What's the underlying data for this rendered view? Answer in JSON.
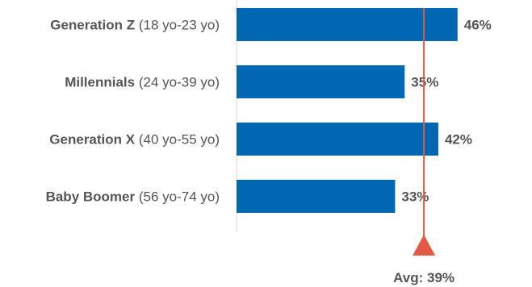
{
  "chart_data": {
    "type": "bar",
    "orientation": "horizontal",
    "categories": [
      {
        "name": "Generation Z",
        "range": "(18 yo-23 yo)"
      },
      {
        "name": "Millennials",
        "range": "(24 yo-39 yo)"
      },
      {
        "name": "Generation X",
        "range": "(40 yo-55 yo)"
      },
      {
        "name": "Baby Boomer",
        "range": "(56 yo-74 yo)"
      }
    ],
    "values": [
      46,
      35,
      42,
      33
    ],
    "value_labels": [
      "46%",
      "35%",
      "42%",
      "33%"
    ],
    "xlim": [
      0,
      61.5
    ],
    "average": {
      "value": 39,
      "label_prefix": "Avg:",
      "label_value": "39%"
    },
    "colors": {
      "bar": "#0068b3",
      "avg": "#e05a45",
      "axis": "#d9d9d9",
      "text": "#555555"
    }
  }
}
